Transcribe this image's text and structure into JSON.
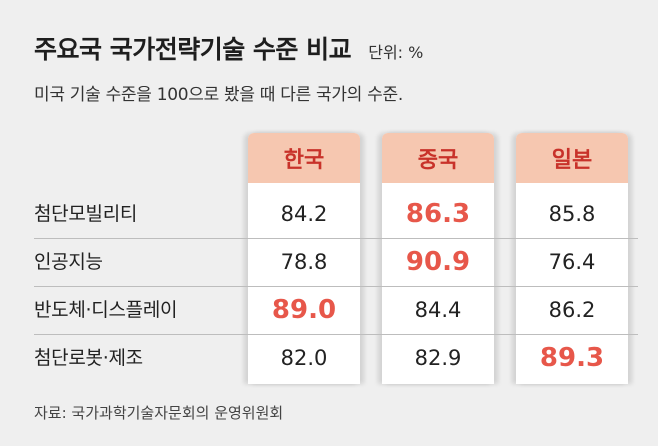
{
  "title": "주요국 국가전략기술 수준 비교",
  "unit_label": "단위: %",
  "subtitle": "미국 기술 수준을 100으로 봤을 때 다른 국가의 수준.",
  "source": "자료: 국가과학기술자문회의 운영위원회",
  "colors": {
    "header_bg": "#f6c7b0",
    "header_text": "#c8322a",
    "highlight": "#e7574a"
  },
  "chart_data": {
    "type": "table",
    "columns": [
      "한국",
      "중국",
      "일본"
    ],
    "rows": [
      {
        "label": "첨단모빌리티",
        "values": [
          "84.2",
          "86.3",
          "85.8"
        ],
        "highlight_index": 1
      },
      {
        "label": "인공지능",
        "values": [
          "78.8",
          "90.9",
          "76.4"
        ],
        "highlight_index": 1
      },
      {
        "label": "반도체·디스플레이",
        "values": [
          "89.0",
          "84.4",
          "86.2"
        ],
        "highlight_index": 0
      },
      {
        "label": "첨단로봇·제조",
        "values": [
          "82.0",
          "82.9",
          "89.3"
        ],
        "highlight_index": 2
      }
    ]
  }
}
